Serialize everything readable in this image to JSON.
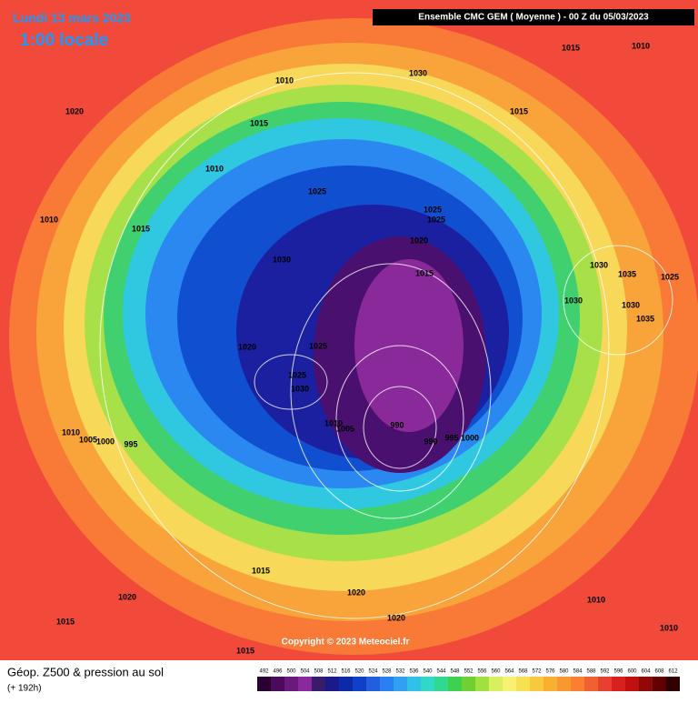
{
  "header": {
    "date": "Lundi 13 mars 2023",
    "time": "1:00 locale",
    "model": "Ensemble CMC GEM  ( Moyenne )  -  00 Z du 05/03/2023"
  },
  "isobar_labels": [
    "1015",
    "1010",
    "1030",
    "1010",
    "1020",
    "1015",
    "1015",
    "1010",
    "1025",
    "1025",
    "1025",
    "1010",
    "1015",
    "1020",
    "1030",
    "1030",
    "1035",
    "1025",
    "1015",
    "1030",
    "1030",
    "1035",
    "1020",
    "1025",
    "1025",
    "1030",
    "1010",
    "1005",
    "990",
    "1010",
    "1005",
    "1000",
    "995",
    "990",
    "995",
    "1000",
    "1015",
    "1020",
    "1020",
    "1010",
    "1015",
    "1020",
    "1010",
    "1015"
  ],
  "copyright": "Copyright © 2023 Meteociel.fr",
  "footer": {
    "title": "Géop. Z500 & pression au sol",
    "lead": "(+ 192h)"
  },
  "colorbar": {
    "ticks": [
      492,
      496,
      500,
      504,
      508,
      512,
      516,
      520,
      524,
      528,
      532,
      536,
      540,
      544,
      548,
      552,
      556,
      560,
      564,
      568,
      572,
      576,
      580,
      584,
      588,
      592,
      596,
      600,
      604,
      608,
      612
    ],
    "colors": [
      "#2a0033",
      "#4b0a5a",
      "#6a1a7a",
      "#8a2a9a",
      "#3a1a6a",
      "#1a1a8a",
      "#0a2aa8",
      "#1040c8",
      "#2060e0",
      "#2a80f0",
      "#30a0f0",
      "#30c0e8",
      "#30d8c8",
      "#30d890",
      "#40d050",
      "#70d030",
      "#a0e040",
      "#d8f060",
      "#f8f070",
      "#f8e050",
      "#f8c840",
      "#f8b030",
      "#f89830",
      "#f88030",
      "#f06030",
      "#e84030",
      "#d82020",
      "#c01010",
      "#900808",
      "#600000",
      "#300000"
    ]
  }
}
